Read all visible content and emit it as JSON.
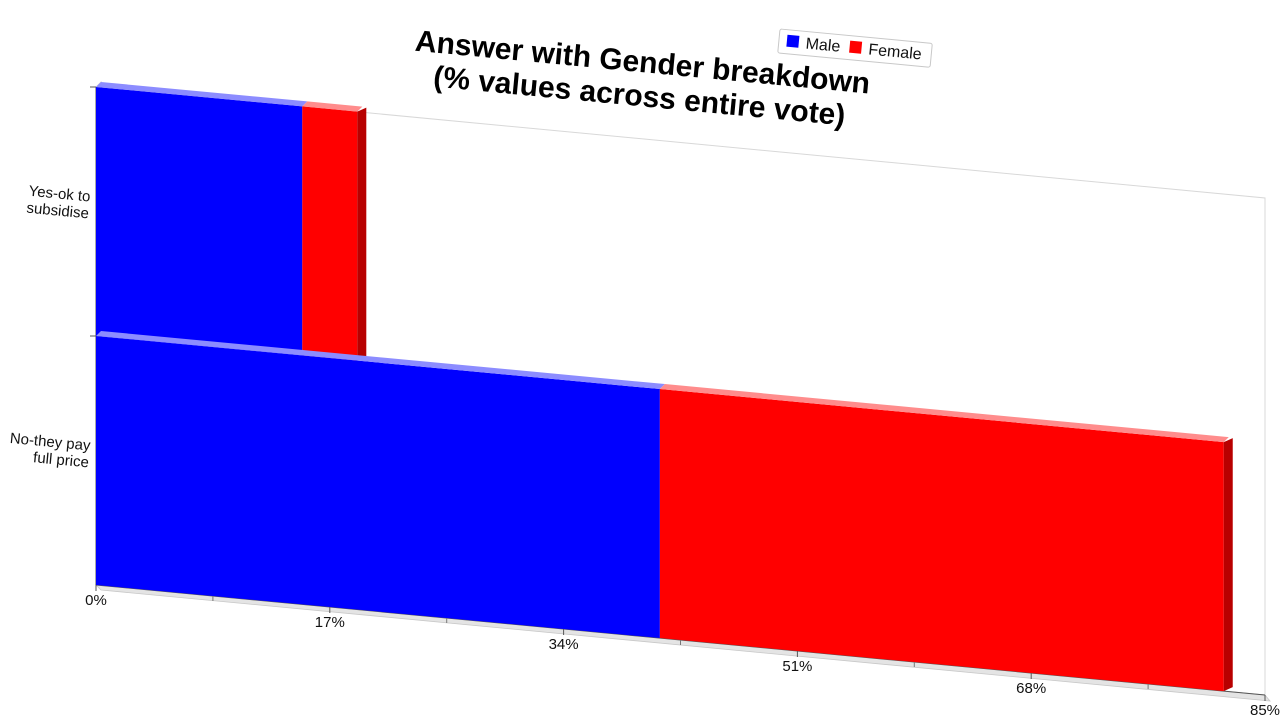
{
  "chart_data": {
    "type": "bar",
    "orientation": "horizontal",
    "stacked": true,
    "title": [
      "Answer with Gender breakdown",
      "(% values across entire vote)"
    ],
    "categories": [
      "Yes-ok to subsidise",
      "No-they pay full price"
    ],
    "category_label_lines": [
      [
        "Yes-ok to",
        "subsidise"
      ],
      [
        "No-they pay",
        "full price"
      ]
    ],
    "series": [
      {
        "name": "Male",
        "color": "#0000ff",
        "values": [
          15,
          41
        ]
      },
      {
        "name": "Female",
        "color": "#ff0000",
        "values": [
          4,
          41
        ]
      }
    ],
    "xlim": [
      0,
      85
    ],
    "xticks": [
      "0%",
      "17%",
      "34%",
      "51%",
      "68%",
      "85%"
    ],
    "legend_position": "top-right",
    "grid": false,
    "perspective": "3d-tilted"
  }
}
